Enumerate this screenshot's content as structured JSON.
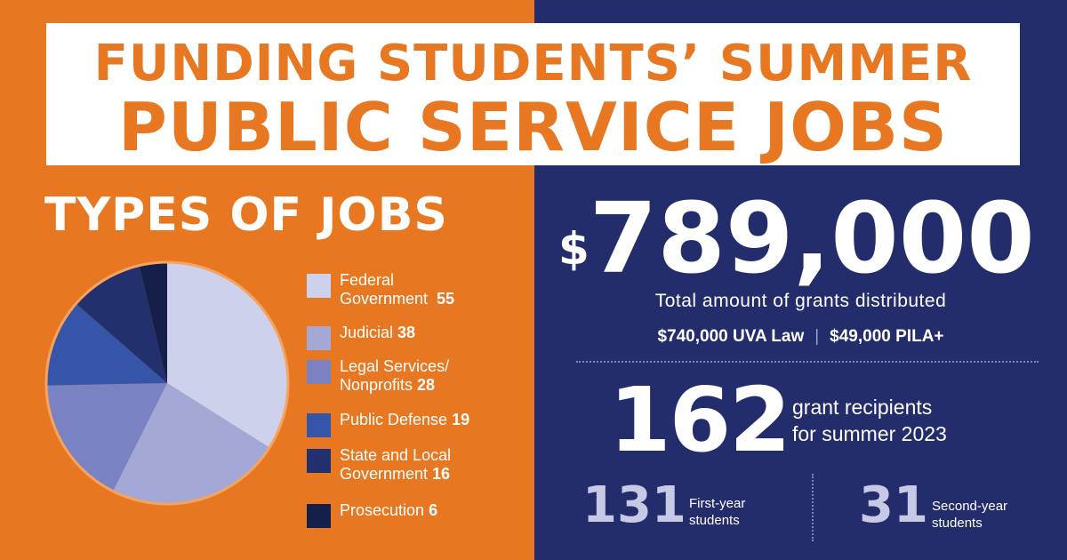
{
  "title": {
    "line1": "FUNDING STUDENTS’ SUMMER",
    "line2": "PUBLIC SERVICE JOBS"
  },
  "colors": {
    "orange": "#E87722",
    "navy": "#232D6B",
    "white": "#FFFFFF"
  },
  "chart_data": {
    "type": "pie",
    "title": "TYPES OF JOBS",
    "categories": [
      {
        "name_lines": [
          "Federal",
          "Government"
        ],
        "value": 55,
        "color": "#CDD1EC"
      },
      {
        "name_lines": [
          "Judicial"
        ],
        "value": 38,
        "color": "#A3A8D6"
      },
      {
        "name_lines": [
          "Legal Services/",
          "Nonprofits"
        ],
        "value": 28,
        "color": "#7A82C3"
      },
      {
        "name_lines": [
          "Public Defense"
        ],
        "value": 19,
        "color": "#3556A8"
      },
      {
        "name_lines": [
          "State and Local",
          "Government"
        ],
        "value": 16,
        "color": "#23306E"
      },
      {
        "name_lines": [
          "Prosecution"
        ],
        "value": 6,
        "color": "#15204A"
      }
    ],
    "legend_placement": "right",
    "pie_outline_color": "#F4A460"
  },
  "stats": {
    "total_amount_sign": "$",
    "total_amount_value": "789,000",
    "total_caption": "Total amount of grants distributed",
    "breakdown_uva": "$740,000 UVA Law",
    "breakdown_separator": "|",
    "breakdown_pila": "$49,000 PILA+",
    "recipients_count": "162",
    "recipients_label_line1": "grant recipients",
    "recipients_label_line2": "for summer 2023",
    "first_year_count": "131",
    "first_year_label_line1": "First-year",
    "first_year_label_line2": "students",
    "second_year_count": "31",
    "second_year_label_line1": "Second-year",
    "second_year_label_line2": "students"
  }
}
